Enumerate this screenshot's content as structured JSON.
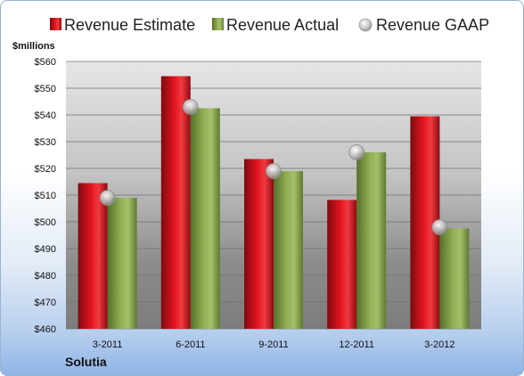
{
  "chart_data": {
    "type": "bar",
    "categories": [
      "3-2011",
      "6-2011",
      "9-2011",
      "12-2011",
      "3-2012"
    ],
    "series": [
      {
        "name": "Revenue Estimate",
        "kind": "bar",
        "color": "#e0101e",
        "values": [
          514.5,
          554.5,
          523.5,
          508.2,
          539.5
        ]
      },
      {
        "name": "Revenue Actual",
        "kind": "bar",
        "color": "#8aa84a",
        "values": [
          509,
          542.5,
          519,
          526,
          497.5
        ]
      },
      {
        "name": "Revenue GAAP",
        "kind": "marker",
        "color": "#c8c8c8",
        "values": [
          509,
          543,
          519,
          526,
          498
        ]
      }
    ],
    "ylabel": "$millions",
    "ylim": [
      460,
      560
    ],
    "yticks": [
      460,
      470,
      480,
      490,
      500,
      510,
      520,
      530,
      540,
      550,
      560
    ],
    "ytick_labels": [
      "$460",
      "$470",
      "$480",
      "$490",
      "$500",
      "$510",
      "$520",
      "$530",
      "$540",
      "$550",
      "$560"
    ],
    "grid": true,
    "legend": "top",
    "company": "Solutia"
  }
}
